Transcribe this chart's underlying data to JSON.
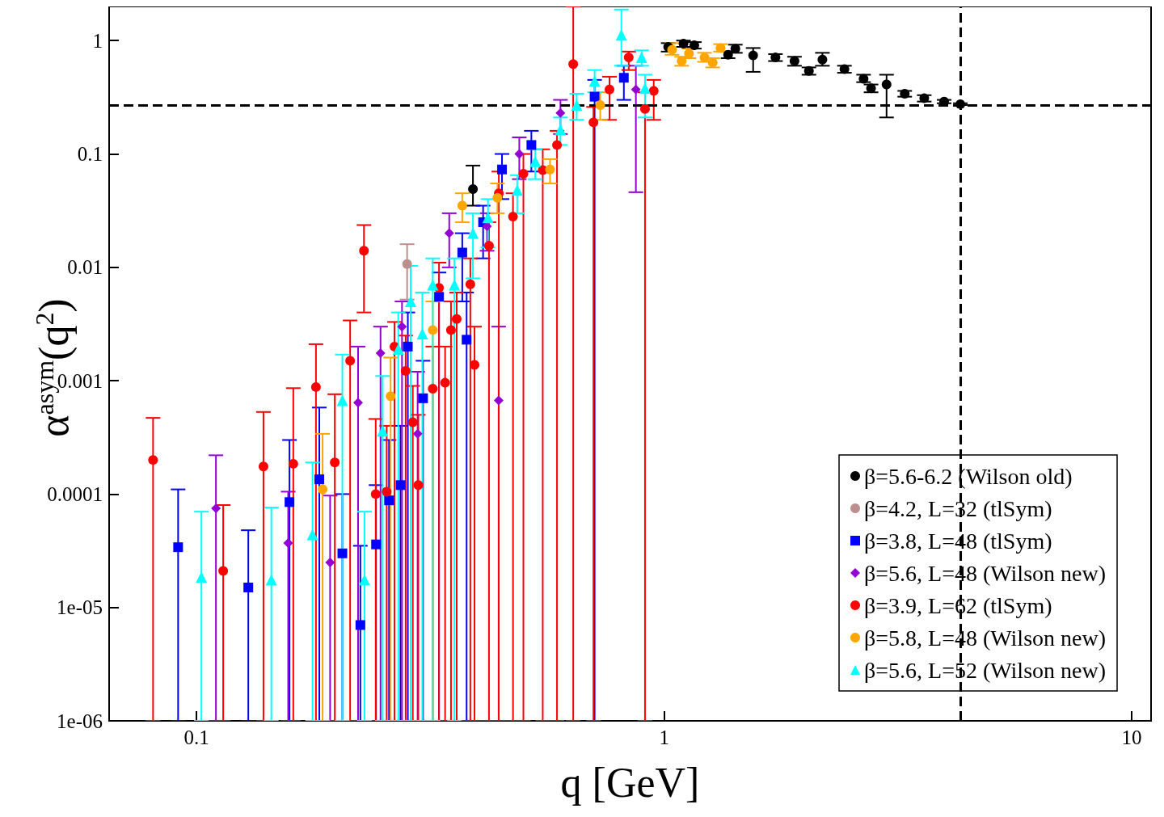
{
  "chart_data": {
    "type": "scatter",
    "xlabel": "q [GeV]",
    "ylabel": "α$^{asym}$(q$^{2}$)",
    "log": "xy",
    "grid": false,
    "legend": "bottom right",
    "xlim": [
      0.065,
      11
    ],
    "xticks": [
      0.1,
      1,
      10
    ],
    "ylim": [
      1e-06,
      2
    ],
    "yticks": [
      {
        "value": 1e-06,
        "label": "1e-06"
      },
      {
        "value": 1e-05,
        "label": "1e-05"
      },
      0.0001,
      0.001,
      0.01,
      0.1,
      1
    ],
    "ref_lines": [
      {
        "axis": "y",
        "value": 0.27,
        "line_style": "dashed",
        "color": "#000000"
      },
      {
        "axis": "x",
        "value": 4.3,
        "line_style": "dashed",
        "color": "#000000"
      }
    ],
    "series": [
      {
        "name": "β=5.6-6.2 (Wilson old)",
        "color": "#000000",
        "marker": "circle",
        "x": [
          0.39,
          1.02,
          1.1,
          1.16,
          1.37,
          1.42,
          1.55,
          1.73,
          1.9,
          2.04,
          2.18,
          2.43,
          2.67,
          2.77,
          2.99,
          3.27,
          3.6,
          3.97,
          4.3
        ],
        "values": [
          0.049,
          0.88,
          0.94,
          0.91,
          0.75,
          0.85,
          0.74,
          0.71,
          0.66,
          0.54,
          0.68,
          0.56,
          0.46,
          0.38,
          0.41,
          0.34,
          0.31,
          0.29,
          0.275
        ],
        "errors": [
          [
            0.035,
            0.079
          ],
          [
            0.8,
            0.95
          ],
          [
            0.88,
            1.0
          ],
          [
            0.85,
            0.97
          ],
          [
            0.7,
            0.8
          ],
          [
            0.78,
            0.92
          ],
          [
            0.53,
            0.86
          ],
          [
            0.66,
            0.76
          ],
          [
            0.6,
            0.72
          ],
          [
            0.5,
            0.58
          ],
          [
            0.6,
            0.78
          ],
          [
            0.52,
            0.6
          ],
          [
            0.43,
            0.5
          ],
          [
            0.35,
            0.41
          ],
          [
            0.21,
            0.5
          ],
          [
            0.32,
            0.36
          ],
          [
            0.29,
            0.33
          ],
          [
            0.28,
            0.3
          ],
          [
            0.27,
            0.28
          ]
        ]
      },
      {
        "name": "β=4.2, L=32 (tlSym)",
        "color": "#bc8f8f",
        "marker": "circle",
        "x": [
          0.282
        ],
        "values": [
          0.0107
        ],
        "errors": [
          [
            0.0052,
            0.016
          ]
        ]
      },
      {
        "name": "β=3.8, L=48 (tlSym)",
        "color": "#0000ff",
        "marker": "square",
        "x": [
          0.0913,
          0.129,
          0.158,
          0.183,
          0.205,
          0.224,
          0.242,
          0.258,
          0.273,
          0.283,
          0.305,
          0.33,
          0.37,
          0.378,
          0.41,
          0.45,
          0.52,
          0.71,
          0.82
        ],
        "values": [
          3.4e-05,
          1.5e-05,
          8.5e-05,
          0.000135,
          3e-05,
          7e-06,
          3.6e-05,
          8.8e-05,
          0.00012,
          0.002,
          0.0007,
          0.0055,
          0.0135,
          0.0023,
          0.025,
          0.073,
          0.12,
          0.32,
          0.47
        ],
        "errors": [
          [
            1e-06,
            0.00011
          ],
          [
            1e-06,
            4.8e-05
          ],
          [
            1e-06,
            0.0003
          ],
          [
            1e-06,
            0.00058
          ],
          [
            1e-06,
            0.0001
          ],
          [
            1e-06,
            3.5e-05
          ],
          [
            1e-06,
            0.00012
          ],
          [
            1e-06,
            0.0003
          ],
          [
            1e-06,
            0.0004
          ],
          [
            1e-06,
            0.004
          ],
          [
            1e-06,
            0.0015
          ],
          [
            1e-06,
            0.009
          ],
          [
            0.005,
            0.02
          ],
          [
            1e-06,
            0.006
          ],
          [
            0.012,
            0.035
          ],
          [
            0.04,
            0.1
          ],
          [
            0.07,
            0.16
          ],
          [
            1e-06,
            0.45
          ],
          [
            0.3,
            0.6
          ]
        ]
      },
      {
        "name": "β=5.6, L=48 (Wilson new)",
        "color": "#9400d3",
        "marker": "diamond",
        "x": [
          0.11,
          0.157,
          0.193,
          0.2215,
          0.2474,
          0.275,
          0.297,
          0.347,
          0.418,
          0.4426,
          0.49,
          0.6,
          0.87
        ],
        "values": [
          7.5e-05,
          3.7e-05,
          2.5e-05,
          0.00064,
          0.00175,
          0.003,
          0.00034,
          0.02,
          0.023,
          0.00067,
          0.1,
          0.23,
          0.37
        ],
        "errors": [
          [
            1e-06,
            0.00022
          ],
          [
            1e-06,
            0.000105
          ],
          [
            1e-06,
            9.7e-05
          ],
          [
            1e-06,
            0.002
          ],
          [
            1e-06,
            0.003
          ],
          [
            1e-06,
            0.005
          ],
          [
            1e-06,
            0.0012
          ],
          [
            0.01,
            0.03
          ],
          [
            0.014,
            0.03
          ],
          [
            1e-06,
            0.003
          ],
          [
            0.06,
            0.14
          ],
          [
            0.15,
            0.3
          ],
          [
            0.046,
            0.6
          ]
        ]
      },
      {
        "name": "β=3.9, L=62 (tlSym)",
        "color": "#ff0000",
        "marker": "circle",
        "x": [
          0.0807,
          0.114,
          0.139,
          0.161,
          0.18,
          0.1975,
          0.213,
          0.228,
          0.2416,
          0.255,
          0.265,
          0.28,
          0.29,
          0.298,
          0.32,
          0.33,
          0.34,
          0.35,
          0.36,
          0.385,
          0.393,
          0.422,
          0.443,
          0.475,
          0.5,
          0.55,
          0.59,
          0.639,
          0.706,
          0.764,
          0.84,
          0.91,
          0.95
        ],
        "values": [
          0.0002,
          2.1e-05,
          0.000175,
          0.000185,
          0.00088,
          0.00019,
          0.0015,
          0.014,
          0.0001,
          0.000105,
          0.002,
          0.00122,
          0.00043,
          0.00012,
          0.00085,
          0.0066,
          0.00096,
          0.0028,
          0.0035,
          0.0071,
          0.00138,
          0.0155,
          0.045,
          0.028,
          0.067,
          0.072,
          0.12,
          0.62,
          0.19,
          0.37,
          0.71,
          0.25,
          0.36
        ],
        "errors": [
          [
            1e-06,
            0.00047
          ],
          [
            1e-06,
            8e-05
          ],
          [
            1e-06,
            0.00053
          ],
          [
            1e-06,
            0.00086
          ],
          [
            1e-06,
            0.0021
          ],
          [
            1e-06,
            0.00076
          ],
          [
            1e-06,
            0.0034
          ],
          [
            0.004,
            0.0236
          ],
          [
            1e-06,
            0.00046
          ],
          [
            1e-06,
            0.0004
          ],
          [
            1e-06,
            0.0033
          ],
          [
            1e-06,
            0.0025
          ],
          [
            1e-06,
            0.0009
          ],
          [
            1e-06,
            0.0005
          ],
          [
            1e-06,
            0.002
          ],
          [
            1e-06,
            0.011
          ],
          [
            1e-06,
            0.002
          ],
          [
            1e-06,
            0.005
          ],
          [
            1e-06,
            0.006
          ],
          [
            1e-06,
            0.012
          ],
          [
            1e-06,
            0.003
          ],
          [
            1e-06,
            0.025
          ],
          [
            1e-06,
            0.07
          ],
          [
            1e-06,
            0.045
          ],
          [
            1e-06,
            0.1
          ],
          [
            1e-06,
            0.11
          ],
          [
            1e-06,
            0.16
          ],
          [
            1e-06,
            2
          ],
          [
            1e-06,
            0.26
          ],
          [
            0.2,
            0.48
          ],
          [
            0.55,
            0.8
          ],
          [
            1e-06,
            0.35
          ],
          [
            0.2,
            0.45
          ]
        ]
      },
      {
        "name": "β=5.8, L=48 (Wilson new)",
        "color": "#ffa500",
        "marker": "circle",
        "x": [
          0.186,
          0.26,
          0.32,
          0.37,
          0.44,
          0.57,
          0.73,
          1.04,
          1.09,
          1.13,
          1.22,
          1.27,
          1.32
        ],
        "values": [
          0.00011,
          0.00073,
          0.0028,
          0.035,
          0.041,
          0.073,
          0.27,
          0.83,
          0.66,
          0.77,
          0.71,
          0.64,
          0.86
        ],
        "errors": [
          [
            1e-06,
            0.00034
          ],
          [
            1e-06,
            0.0016
          ],
          [
            1e-06,
            0.005
          ],
          [
            0.025,
            0.045
          ],
          [
            0.03,
            0.055
          ],
          [
            0.055,
            0.09
          ],
          [
            0.2,
            0.35
          ],
          [
            0.75,
            0.95
          ],
          [
            0.6,
            0.72
          ],
          [
            0.7,
            0.85
          ],
          [
            0.65,
            0.78
          ],
          [
            0.58,
            0.7
          ],
          [
            0.8,
            0.93
          ]
        ]
      },
      {
        "name": "β=5.6, L=52 (Wilson new)",
        "color": "#00ffff",
        "marker": "triangle",
        "x": [
          0.1024,
          0.1445,
          0.177,
          0.205,
          0.2286,
          0.25,
          0.27,
          0.287,
          0.304,
          0.32,
          0.356,
          0.39,
          0.42,
          0.485,
          0.53,
          0.6,
          0.65,
          0.71,
          0.81,
          0.895,
          0.91
        ],
        "values": [
          1.85e-05,
          1.75e-05,
          4.4e-05,
          0.00067,
          1.75e-05,
          0.00036,
          0.0019,
          0.005,
          0.0026,
          0.007,
          0.007,
          0.02,
          0.0275,
          0.048,
          0.086,
          0.164,
          0.27,
          0.44,
          1.12,
          0.71,
          0.38
        ],
        "errors": [
          [
            1e-06,
            7e-05
          ],
          [
            1e-06,
            7.6e-05
          ],
          [
            1e-06,
            0.00019
          ],
          [
            1e-06,
            0.0017
          ],
          [
            1e-06,
            7e-05
          ],
          [
            1e-06,
            0.0011
          ],
          [
            1e-06,
            0.004
          ],
          [
            1e-06,
            0.0103
          ],
          [
            1e-06,
            0.006
          ],
          [
            1e-06,
            0.012
          ],
          [
            1e-06,
            0.012
          ],
          [
            0.008,
            0.03
          ],
          [
            0.015,
            0.04
          ],
          [
            0.03,
            0.065
          ],
          [
            0.06,
            0.11
          ],
          [
            0.12,
            0.21
          ],
          [
            0.2,
            0.34
          ],
          [
            0.35,
            0.55
          ],
          [
            0.6,
            1.88
          ],
          [
            0.6,
            0.82
          ],
          [
            0.21,
            0.5
          ]
        ]
      }
    ]
  }
}
